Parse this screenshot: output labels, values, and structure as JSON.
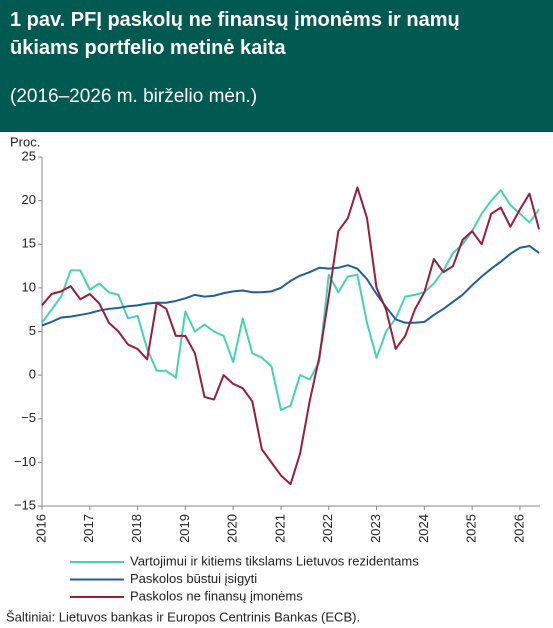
{
  "chart_data": {
    "type": "line",
    "title": "1 pav. PFĮ paskolų ne finansų įmonėms ir namų ūkiams portfelio metinė kaita",
    "subtitle": "(2016–2026 m. birželio mėn.)",
    "y_label": "Proc.",
    "source": "Šaltiniai: Lietuvos bankas ir Europos Centrinis Bankas (ECB).",
    "x": [
      2016.0,
      2016.2,
      2016.4,
      2016.6,
      2016.8,
      2017.0,
      2017.2,
      2017.4,
      2017.6,
      2017.8,
      2018.0,
      2018.2,
      2018.4,
      2018.6,
      2018.8,
      2019.0,
      2019.2,
      2019.4,
      2019.6,
      2019.8,
      2020.0,
      2020.2,
      2020.4,
      2020.6,
      2020.8,
      2021.0,
      2021.2,
      2021.4,
      2021.6,
      2021.8,
      2022.0,
      2022.2,
      2022.4,
      2022.6,
      2022.8,
      2023.0,
      2023.2,
      2023.4,
      2023.6,
      2023.8,
      2024.0,
      2024.2,
      2024.4,
      2024.6,
      2024.8,
      2025.0,
      2025.2,
      2025.4,
      2025.6,
      2025.8,
      2026.0,
      2026.2,
      2026.4
    ],
    "xlim": [
      2016,
      2026.42
    ],
    "xticks": [
      2016,
      2017,
      2018,
      2019,
      2020,
      2021,
      2022,
      2023,
      2024,
      2025,
      2026
    ],
    "ylim": [
      -15,
      25
    ],
    "yticks": [
      {
        "value": -15,
        "label": "−15"
      },
      {
        "value": -10,
        "label": "−10"
      },
      {
        "value": -5,
        "label": "−5"
      },
      0,
      5,
      10,
      15,
      20,
      25
    ],
    "grid": false,
    "series": [
      {
        "name": "Vartojimui ir kitiems tikslams Lietuvos rezidentams",
        "color": "#45d3b5",
        "values": [
          6,
          7.5,
          9,
          12,
          12,
          9.8,
          10.5,
          9.5,
          9.2,
          6.5,
          6.8,
          3,
          0.5,
          0.5,
          -0.3,
          7.3,
          5,
          5.8,
          5,
          4.5,
          1.5,
          6.5,
          2.5,
          2,
          1,
          -4,
          -3.5,
          0,
          -0.5,
          1.5,
          11.5,
          9.5,
          11.3,
          11.5,
          6,
          2,
          5,
          6.5,
          9,
          9.2,
          9.5,
          10.5,
          12,
          14,
          15,
          16.5,
          18.5,
          20,
          21.2,
          19.5,
          18.5,
          17.5,
          19
        ]
      },
      {
        "name": "Paskolos būstui įsigyti",
        "color": "#1f5fa0",
        "values": [
          5.7,
          6.1,
          6.6,
          6.7,
          6.9,
          7.1,
          7.4,
          7.6,
          7.7,
          7.9,
          8.0,
          8.2,
          8.3,
          8.3,
          8.5,
          8.8,
          9.2,
          9.0,
          9.1,
          9.4,
          9.6,
          9.7,
          9.5,
          9.5,
          9.6,
          10.0,
          10.8,
          11.4,
          11.8,
          12.3,
          12.2,
          12.3,
          12.6,
          12.2,
          11.0,
          9.3,
          7.8,
          6.4,
          6.0,
          6.0,
          6.1,
          6.9,
          7.6,
          8.4,
          9.2,
          10.3,
          11.3,
          12.2,
          13.0,
          13.9,
          14.6,
          14.8,
          14.0
        ]
      },
      {
        "name": "Paskolos ne finansų įmonėms",
        "color": "#9c1c3c",
        "values": [
          8.0,
          9.3,
          9.6,
          10.2,
          8.7,
          9.3,
          8.2,
          6.0,
          5.0,
          3.5,
          3.0,
          1.8,
          8.3,
          7.6,
          4.5,
          4.5,
          2.5,
          -2.5,
          -2.8,
          0,
          -1.0,
          -1.5,
          -3.0,
          -8.5,
          -10.0,
          -11.5,
          -12.5,
          -9.0,
          -3.0,
          2.0,
          9.0,
          16.5,
          18.0,
          21.5,
          18.0,
          10.0,
          7.5,
          3.0,
          4.5,
          7.5,
          9.5,
          13.3,
          11.8,
          12.5,
          15.5,
          16.5,
          15.0,
          18.5,
          19.2,
          17.0,
          19.0,
          20.8,
          16.7
        ]
      }
    ]
  }
}
